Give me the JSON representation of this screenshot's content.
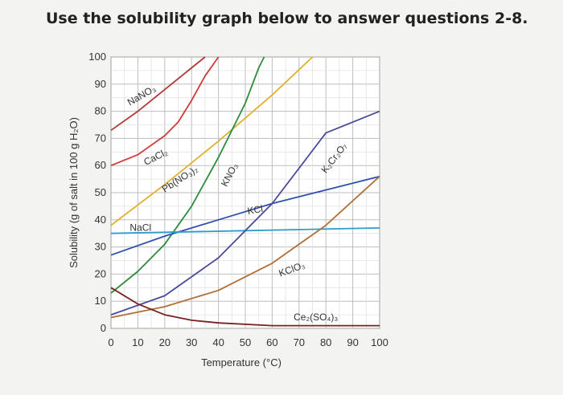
{
  "page": {
    "title": "Use the solubility graph below to answer questions 2-8."
  },
  "chart_data": {
    "type": "line",
    "xlabel": "Temperature (°C)",
    "ylabel": "Solubility (g of salt in 100 g H₂O)",
    "xlim": [
      0,
      100
    ],
    "ylim": [
      0,
      100
    ],
    "xticks": [
      0,
      10,
      20,
      30,
      40,
      50,
      60,
      70,
      80,
      90,
      100
    ],
    "yticks": [
      0,
      10,
      20,
      30,
      40,
      50,
      60,
      70,
      80,
      90,
      100
    ],
    "grid": true,
    "series": [
      {
        "name": "NaNO₃",
        "color": "#b03a3a",
        "points": [
          [
            0,
            73
          ],
          [
            10,
            80
          ],
          [
            20,
            88
          ],
          [
            30,
            96
          ],
          [
            35,
            100
          ]
        ]
      },
      {
        "name": "CaCl₂",
        "color": "#d03a3a",
        "points": [
          [
            0,
            60
          ],
          [
            10,
            64
          ],
          [
            20,
            71
          ],
          [
            25,
            76
          ],
          [
            30,
            84
          ],
          [
            35,
            93
          ],
          [
            40,
            103
          ]
        ]
      },
      {
        "name": "Pb(NO₃)₂",
        "color": "#e0b030",
        "points": [
          [
            0,
            38
          ],
          [
            20,
            53
          ],
          [
            40,
            69
          ],
          [
            60,
            86
          ],
          [
            75,
            100
          ]
        ]
      },
      {
        "name": "KNO₃",
        "color": "#2e8b3c",
        "points": [
          [
            0,
            13
          ],
          [
            10,
            21
          ],
          [
            20,
            31
          ],
          [
            30,
            45
          ],
          [
            40,
            63
          ],
          [
            50,
            83
          ],
          [
            55,
            96
          ],
          [
            57,
            100
          ]
        ]
      },
      {
        "name": "KCl",
        "color": "#3050b0",
        "points": [
          [
            0,
            27
          ],
          [
            20,
            34
          ],
          [
            40,
            40
          ],
          [
            60,
            46
          ],
          [
            80,
            51
          ],
          [
            100,
            56
          ]
        ]
      },
      {
        "name": "NaCl",
        "color": "#2e9ccc",
        "points": [
          [
            0,
            35
          ],
          [
            50,
            36
          ],
          [
            100,
            37
          ]
        ]
      },
      {
        "name": "K₂Cr₂O₇",
        "color": "#4a4a9a",
        "points": [
          [
            0,
            5
          ],
          [
            20,
            12
          ],
          [
            40,
            26
          ],
          [
            60,
            46
          ],
          [
            80,
            72
          ],
          [
            100,
            80
          ]
        ]
      },
      {
        "name": "KClO₃",
        "color": "#b07038",
        "points": [
          [
            0,
            4
          ],
          [
            20,
            8
          ],
          [
            40,
            14
          ],
          [
            60,
            24
          ],
          [
            80,
            38
          ],
          [
            100,
            56
          ]
        ]
      },
      {
        "name": "Ce₂(SO₄)₃",
        "color": "#7a2020",
        "points": [
          [
            0,
            15
          ],
          [
            10,
            9
          ],
          [
            20,
            5
          ],
          [
            30,
            3
          ],
          [
            40,
            2
          ],
          [
            60,
            1
          ],
          [
            100,
            1
          ]
        ]
      }
    ],
    "series_labels": [
      {
        "text": "NaNO₃",
        "x": 7,
        "y": 82,
        "angle": -30
      },
      {
        "text": "CaCl₂",
        "x": 13,
        "y": 60,
        "angle": -27
      },
      {
        "text": "Pb(NO₃)₂",
        "x": 20,
        "y": 50,
        "angle": -33
      },
      {
        "text": "KNO₃",
        "x": 43,
        "y": 52,
        "angle": -62
      },
      {
        "text": "KCl",
        "x": 51,
        "y": 42,
        "angle": -10
      },
      {
        "text": "NaCl",
        "x": 7,
        "y": 36,
        "angle": 0
      },
      {
        "text": "K₂Cr₂O₇",
        "x": 80,
        "y": 57,
        "angle": -52
      },
      {
        "text": "KClO₃",
        "x": 63,
        "y": 19,
        "angle": -20
      },
      {
        "text": "Ce₂(SO₄)₃",
        "x": 68,
        "y": 3,
        "angle": 0
      }
    ]
  }
}
